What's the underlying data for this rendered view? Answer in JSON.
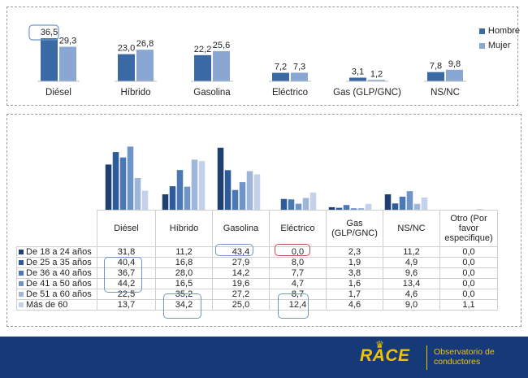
{
  "chart_data": [
    {
      "type": "bar",
      "categories": [
        "Diésel",
        "Híbrido",
        "Gasolina",
        "Eléctrico",
        "Gas (GLP/GNC)",
        "NS/NC"
      ],
      "series": [
        {
          "name": "Hombre",
          "values": [
            36.5,
            23.0,
            22.2,
            7.2,
            3.1,
            7.8
          ]
        },
        {
          "name": "Mujer",
          "values": [
            29.3,
            26.8,
            25.6,
            7.3,
            1.2,
            9.8
          ]
        }
      ],
      "value_labels": [
        [
          "36,5",
          "23,0",
          "22,2",
          "7,2",
          "3,1",
          "7,8"
        ],
        [
          "29,3",
          "26,8",
          "25,6",
          "7,3",
          "1,2",
          "9,8"
        ]
      ],
      "colors": [
        "#3a6aa5",
        "#8aa7d3"
      ],
      "legend": "right",
      "grid": false
    },
    {
      "type": "bar",
      "categories": [
        "Diésel",
        "Híbrido",
        "Gasolina",
        "Eléctrico",
        "Gas (GLP/GNC)",
        "NS/NC",
        "Otro (Por favor especifique)"
      ],
      "series": [
        {
          "name": "De 18 a 24 años",
          "values": [
            31.8,
            11.2,
            43.4,
            0.0,
            2.3,
            11.2,
            0.0
          ]
        },
        {
          "name": "De 25 a 35 años",
          "values": [
            40.4,
            16.8,
            27.9,
            8.0,
            1.9,
            4.9,
            0.0
          ]
        },
        {
          "name": "De 36 a 40 años",
          "values": [
            36.7,
            28.0,
            14.2,
            7.7,
            3.8,
            9.6,
            0.0
          ]
        },
        {
          "name": "De 41 a 50 años",
          "values": [
            44.2,
            16.5,
            19.6,
            4.7,
            1.6,
            13.4,
            0.0
          ]
        },
        {
          "name": "De 51 a 60 años",
          "values": [
            22.5,
            35.2,
            27.2,
            8.7,
            1.7,
            4.6,
            0.0
          ]
        },
        {
          "name": "Más de 60",
          "values": [
            13.7,
            34.2,
            25.0,
            12.4,
            4.6,
            9.0,
            1.1
          ]
        }
      ],
      "table_headers": [
        "Diésel",
        "Híbrido",
        "Gasolina",
        "Eléctrico",
        "Gas (GLP/GNC)",
        "NS/NC",
        "Otro (Por favor especifique)"
      ],
      "table_rows": [
        {
          "label": "De 18 a 24 años",
          "cells": [
            "31,8",
            "11,2",
            "43,4",
            "0,0",
            "2,3",
            "11,2",
            "0,0"
          ]
        },
        {
          "label": "De 25 a 35 años",
          "cells": [
            "40,4",
            "16,8",
            "27,9",
            "8,0",
            "1,9",
            "4,9",
            "0,0"
          ]
        },
        {
          "label": "De 36 a 40 años",
          "cells": [
            "36,7",
            "28,0",
            "14,2",
            "7,7",
            "3,8",
            "9,6",
            "0,0"
          ]
        },
        {
          "label": "De 41 a 50 años",
          "cells": [
            "44,2",
            "16,5",
            "19,6",
            "4,7",
            "1,6",
            "13,4",
            "0,0"
          ]
        },
        {
          "label": "De 51 a 60 años",
          "cells": [
            "22,5",
            "35,2",
            "27,2",
            "8,7",
            "1,7",
            "4,6",
            "0,0"
          ]
        },
        {
          "label": "Más de 60",
          "cells": [
            "13,7",
            "34,2",
            "25,0",
            "12,4",
            "4,6",
            "9,0",
            "1,1"
          ]
        }
      ],
      "colors": [
        "#1f3f6e",
        "#2e5c98",
        "#4a78b4",
        "#6f95c8",
        "#9db6da",
        "#c3d2ea"
      ],
      "legend": "table",
      "grid": false
    }
  ],
  "footer": {
    "logo_text": "RACE",
    "subtitle_line1": "Observatorio de",
    "subtitle_line2": "conductores",
    "background": "#163a78",
    "accent": "#f2c300"
  }
}
